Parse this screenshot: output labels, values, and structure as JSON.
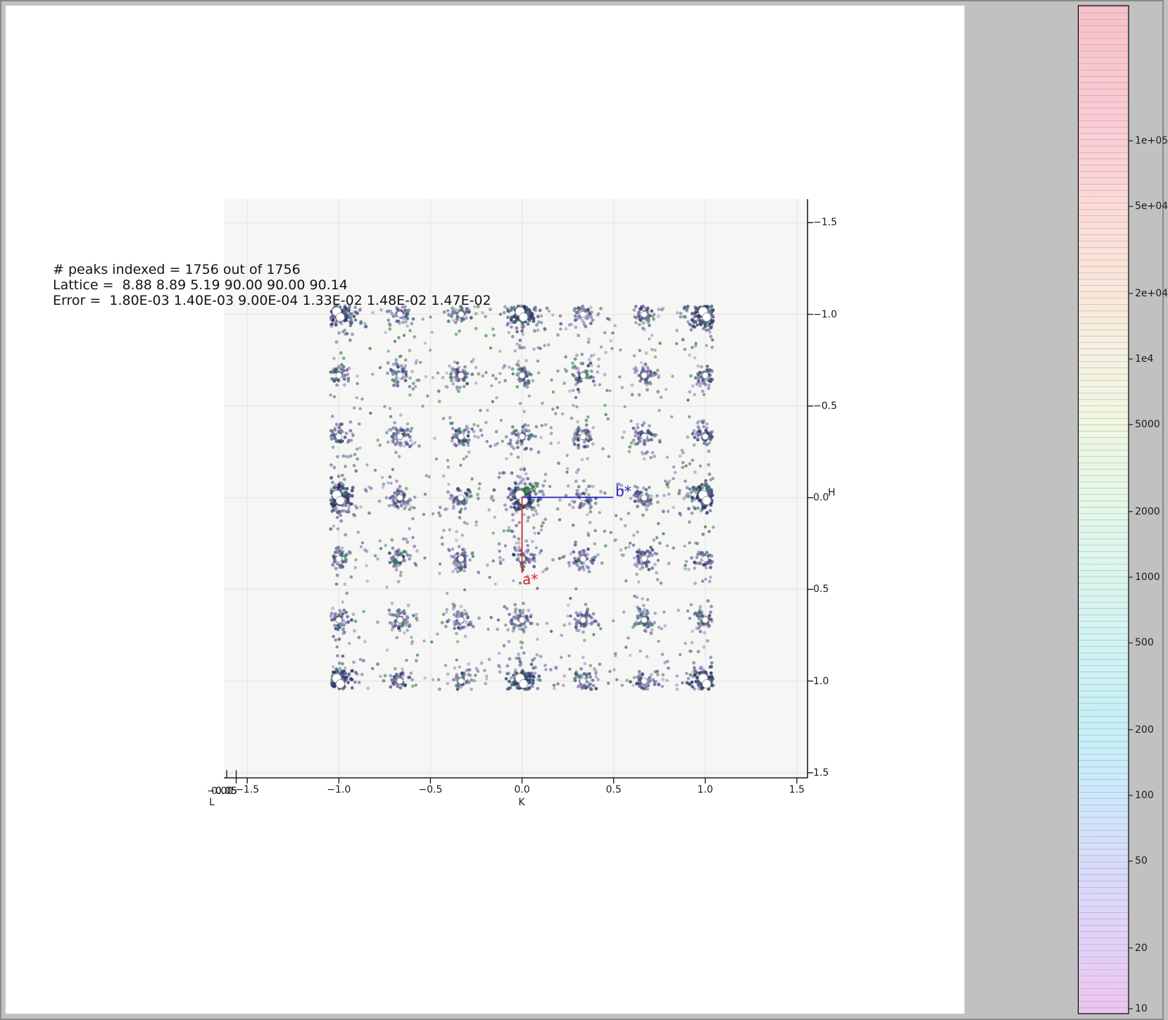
{
  "window": {
    "background": "#c1c1c1",
    "figure_background": "#ffffff",
    "panel_background": "#f6f6f5",
    "grid_color": "#e7e7e7"
  },
  "annotation": {
    "line1": "# peaks indexed = 1756 out of 1756",
    "line2": "Lattice =  8.88 8.89 5.19 90.00 90.00 90.14",
    "line3": "Error =  1.80E-03 1.40E-03 9.00E-04 1.33E-02 1.48E-02 1.47E-02"
  },
  "axes": {
    "x_label": "K",
    "y_label": "H",
    "z_label": "L",
    "x_tick_labels": [
      "−1.5",
      "−1.0",
      "−0.5",
      "0.0",
      "0.5",
      "1.0",
      "1.5"
    ],
    "y_tick_labels": [
      "−1.5",
      "−1.0",
      "−0.5",
      "0.0",
      "0.5",
      "1.0",
      "1.5"
    ],
    "z_overlapped_tick_labels": [
      "−0.05",
      "0.00",
      "0.05"
    ]
  },
  "vectors": {
    "a_label": "a*",
    "a_color": "#d62222",
    "b_label": "b*",
    "b_color": "#2020c8",
    "c_label": "c*",
    "c_color": "#1e8c1e"
  },
  "colorbar": {
    "scale": "log",
    "tick_labels": [
      "1e+05",
      "5e+04",
      "2e+04",
      "1e4",
      "5000",
      "2000",
      "1000",
      "500",
      "200",
      "100",
      "50",
      "20",
      "10"
    ],
    "tick_values": [
      100000,
      50000,
      20000,
      10000,
      5000,
      2000,
      1000,
      500,
      200,
      100,
      50,
      20,
      10
    ],
    "gradient": [
      {
        "v": 420000,
        "c": "#f7c3ca"
      },
      {
        "v": 100000,
        "c": "#f9ced4"
      },
      {
        "v": 50000,
        "c": "#fbdbd5"
      },
      {
        "v": 20000,
        "c": "#f9e8da"
      },
      {
        "v": 10000,
        "c": "#f4f2e0"
      },
      {
        "v": 5000,
        "c": "#eef7e0"
      },
      {
        "v": 2000,
        "c": "#e2f7e7"
      },
      {
        "v": 1000,
        "c": "#daf5ec"
      },
      {
        "v": 500,
        "c": "#d1f3f1"
      },
      {
        "v": 200,
        "c": "#c5f0f5"
      },
      {
        "v": 100,
        "c": "#cde8fa"
      },
      {
        "v": 50,
        "c": "#d7dcf8"
      },
      {
        "v": 20,
        "c": "#e2d1f6"
      },
      {
        "v": 10,
        "c": "#ecc6ee"
      }
    ]
  },
  "chart_data": {
    "type": "scatter",
    "xlabel": "K",
    "ylabel": "H",
    "zlabel": "L",
    "xlim": [
      -1.5,
      1.5
    ],
    "ylim_top_to_bottom": [
      -1.5,
      1.5
    ],
    "x_ticks": [
      -1.5,
      -1.0,
      -0.5,
      0.0,
      0.5,
      1.0,
      1.5
    ],
    "y_ticks": [
      -1.5,
      -1.0,
      -0.5,
      0.0,
      0.5,
      1.0,
      1.5
    ],
    "grid": true,
    "n_peaks_indexed": 1756,
    "n_peaks_total": 1756,
    "lattice_parameters": [
      8.88,
      8.89,
      5.19,
      90.0,
      90.0,
      90.14
    ],
    "lattice_errors": [
      "1.80E-03",
      "1.40E-03",
      "9.00E-04",
      "1.33E-02",
      "1.48E-02",
      "1.47E-02"
    ],
    "data_extent_kh": [
      -1.045,
      1.045
    ],
    "cluster_k_positions": [
      -1.0,
      -0.6667,
      -0.3333,
      0.0,
      0.3333,
      0.6667,
      1.0
    ],
    "cluster_h_positions": [
      -1.0,
      -0.6667,
      -0.3333,
      0.0,
      0.3333,
      0.6667,
      1.0
    ],
    "integer_node_spots": "large white open circles at K,H in {-1,0,1}",
    "third_node_spots": "small white open circles at all 1/3-spaced cluster centers",
    "vectors": {
      "a_star_end_kh": [
        0.0,
        0.42
      ],
      "b_star_end_kh": [
        0.5,
        0.0
      ],
      "c_star": "out-of-plane marker at origin"
    },
    "point_palette": {
      "dark": [
        "#252c5e",
        "#333a6e",
        "#2d4370",
        "#386a72"
      ],
      "mid": [
        "#41477e",
        "#6c63a0",
        "#8e7fb6",
        "#3f7a74",
        "#2e355f"
      ],
      "light": [
        "#8e7fb6",
        "#9a8cc0",
        "#6c63a0",
        "#4b5286",
        "#3f7a74",
        "#35803f"
      ]
    },
    "colorbar_scale": "log",
    "colorbar_range": [
      10,
      420000
    ]
  }
}
